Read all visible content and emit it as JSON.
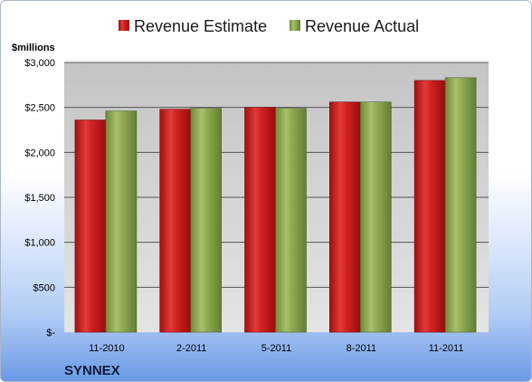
{
  "chart_data": {
    "type": "bar",
    "categories": [
      "11-2010",
      "2-2011",
      "5-2011",
      "8-2011",
      "11-2011"
    ],
    "series": [
      {
        "name": "Revenue Estimate",
        "values": [
          2360,
          2480,
          2500,
          2560,
          2800
        ],
        "color": "#cc1f1f"
      },
      {
        "name": "Revenue Actual",
        "values": [
          2460,
          2490,
          2490,
          2560,
          2830
        ],
        "color": "#86a34a"
      }
    ],
    "y_unit_label": "$millions",
    "ylim": [
      0,
      3000
    ],
    "y_ticks": [
      {
        "value": 0,
        "label": "$-"
      },
      {
        "value": 500,
        "label": "$500"
      },
      {
        "value": 1000,
        "label": "$1,000"
      },
      {
        "value": 1500,
        "label": "$1,500"
      },
      {
        "value": 2000,
        "label": "$2,000"
      },
      {
        "value": 2500,
        "label": "$2,500"
      },
      {
        "value": 3000,
        "label": "$3,000"
      }
    ],
    "grid": true,
    "legend_position": "top",
    "company": "SYNNEX"
  }
}
